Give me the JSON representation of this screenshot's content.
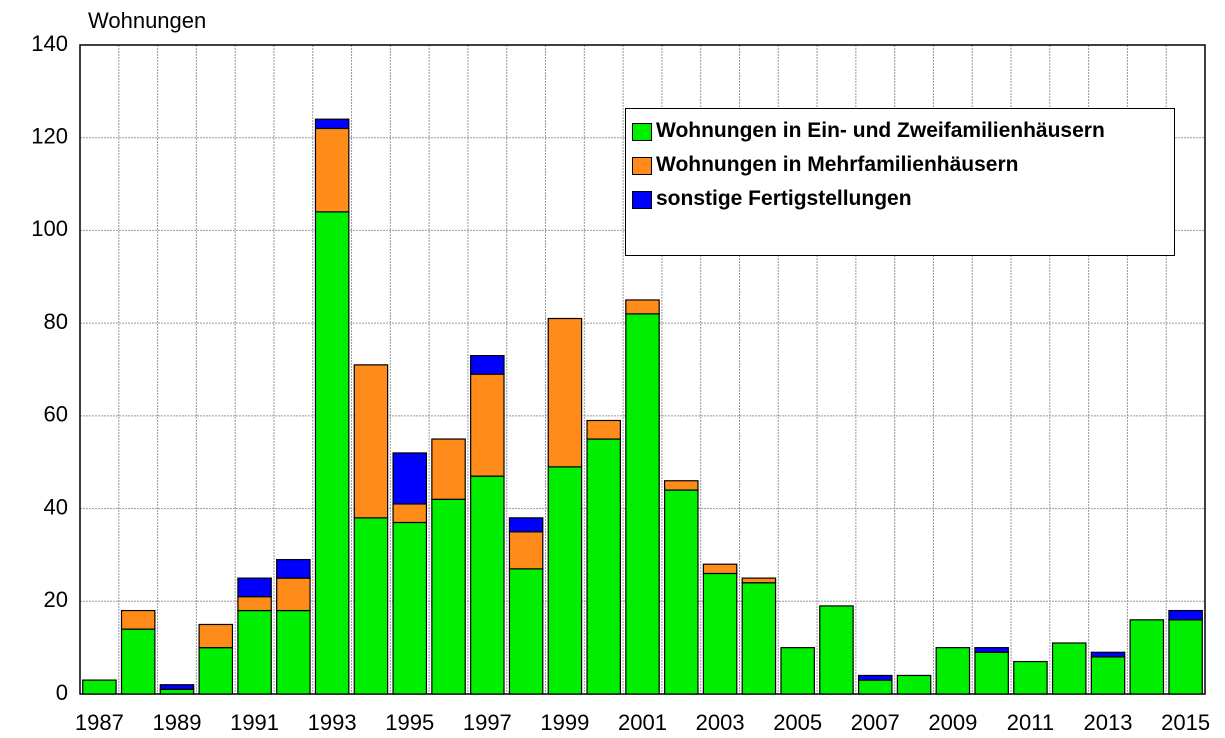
{
  "chart_data": {
    "type": "stacked_bar",
    "y_label": "Wohnungen",
    "categories": [
      "1987",
      null,
      "1989",
      null,
      "1991",
      null,
      "1993",
      null,
      "1995",
      null,
      "1997",
      null,
      "1999",
      null,
      "2001",
      null,
      "2003",
      null,
      "2005",
      null,
      "2007",
      null,
      "2009",
      null,
      "2011",
      null,
      "2013",
      null,
      "2015"
    ],
    "series": [
      {
        "name": "Wohnungen in Ein- und Zweifamilienhäusern",
        "color": "#00ee00",
        "values": [
          3,
          14,
          1,
          10,
          18,
          18,
          104,
          38,
          37,
          42,
          47,
          27,
          49,
          55,
          82,
          44,
          26,
          24,
          10,
          19,
          3,
          4,
          10,
          9,
          7,
          11,
          8,
          16,
          16
        ]
      },
      {
        "name": "Wohnungen in Mehrfamilienhäusern",
        "color": "#ff8c1a",
        "values": [
          0,
          4,
          0,
          5,
          3,
          7,
          18,
          33,
          4,
          13,
          22,
          8,
          32,
          4,
          3,
          2,
          2,
          1,
          0,
          0,
          0,
          0,
          0,
          0,
          0,
          0,
          0,
          0,
          0
        ]
      },
      {
        "name": "sonstige Fertigstellungen",
        "color": "#0000ff",
        "values": [
          0,
          0,
          1,
          0,
          4,
          4,
          2,
          0,
          11,
          0,
          4,
          3,
          0,
          0,
          0,
          0,
          0,
          0,
          0,
          0,
          1,
          0,
          0,
          1,
          0,
          0,
          1,
          0,
          2
        ]
      }
    ],
    "ylim": [
      0,
      140
    ],
    "yticks": [
      0,
      20,
      40,
      60,
      80,
      100,
      120,
      140
    ],
    "grid": true
  }
}
